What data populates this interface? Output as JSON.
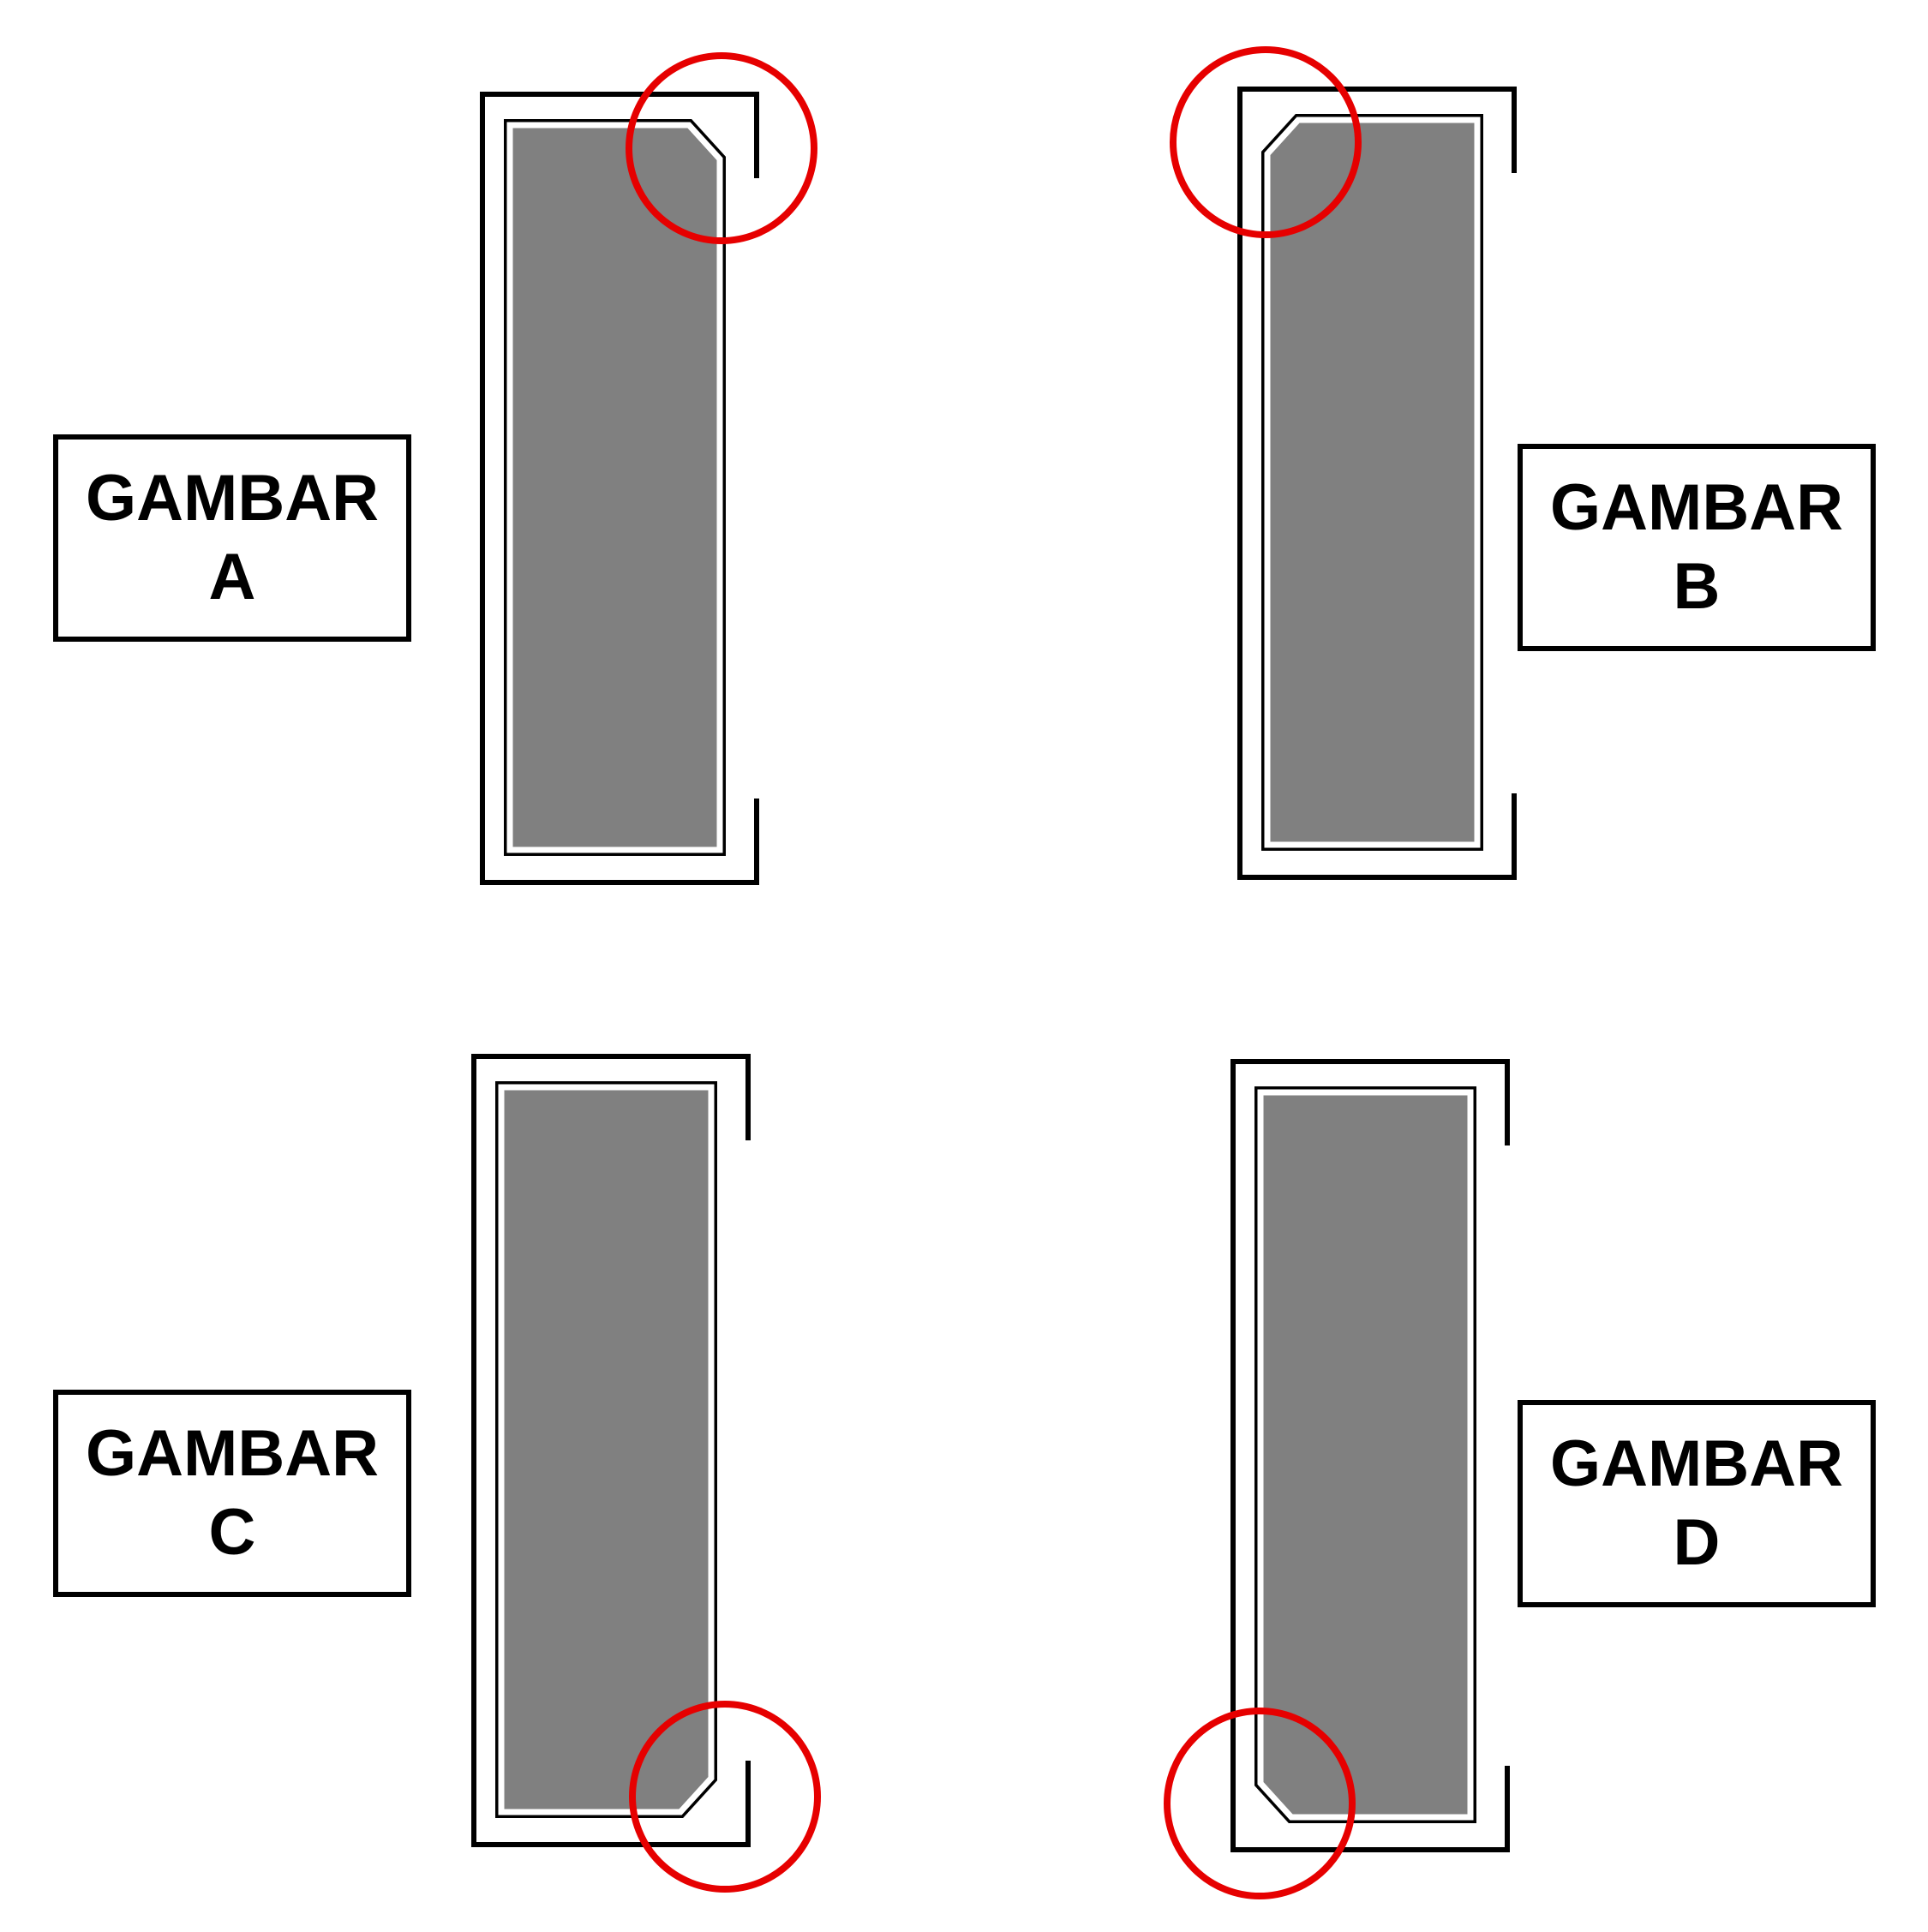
{
  "colors": {
    "outline": "#000000",
    "fill_gray": "#808080",
    "highlight": "#e60000",
    "background": "#ffffff"
  },
  "figures": [
    {
      "id": "a",
      "word": "GAMBAR",
      "letter": "A",
      "chamfer": "top-right",
      "label_side": "left"
    },
    {
      "id": "b",
      "word": "GAMBAR",
      "letter": "B",
      "chamfer": "top-left",
      "label_side": "right"
    },
    {
      "id": "c",
      "word": "GAMBAR",
      "letter": "C",
      "chamfer": "bottom-right",
      "label_side": "left"
    },
    {
      "id": "d",
      "word": "GAMBAR",
      "letter": "D",
      "chamfer": "bottom-left",
      "label_side": "right"
    }
  ]
}
